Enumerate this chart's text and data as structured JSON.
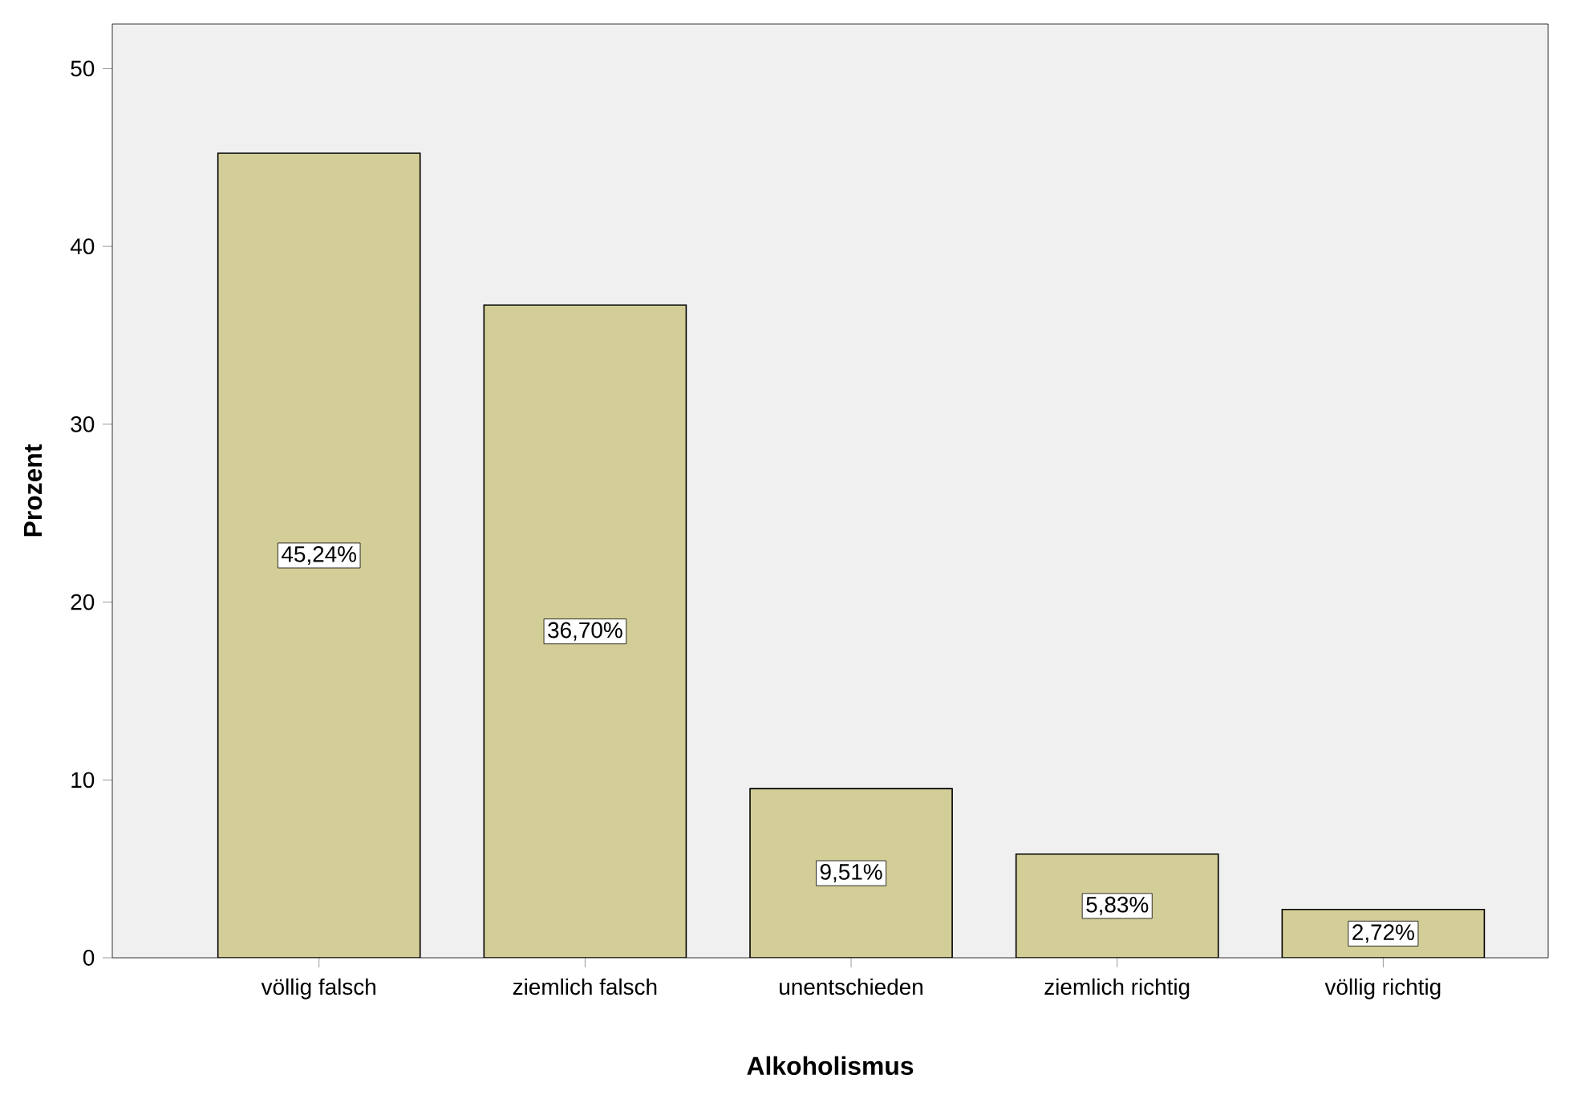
{
  "chart_data": {
    "type": "bar",
    "xlabel": "Alkoholismus",
    "ylabel": "Prozent",
    "categories": [
      "völlig falsch",
      "ziemlich falsch",
      "unentschieden",
      "ziemlich richtig",
      "völlig richtig"
    ],
    "values": [
      45.24,
      36.7,
      9.51,
      5.83,
      2.72
    ],
    "value_labels": [
      "45,24%",
      "36,70%",
      "9,51%",
      "5,83%",
      "2,72%"
    ],
    "color": "#d3ce97",
    "ylim": [
      0,
      52.5
    ],
    "yticks": [
      0,
      10,
      20,
      30,
      40,
      50
    ],
    "grid": false
  }
}
